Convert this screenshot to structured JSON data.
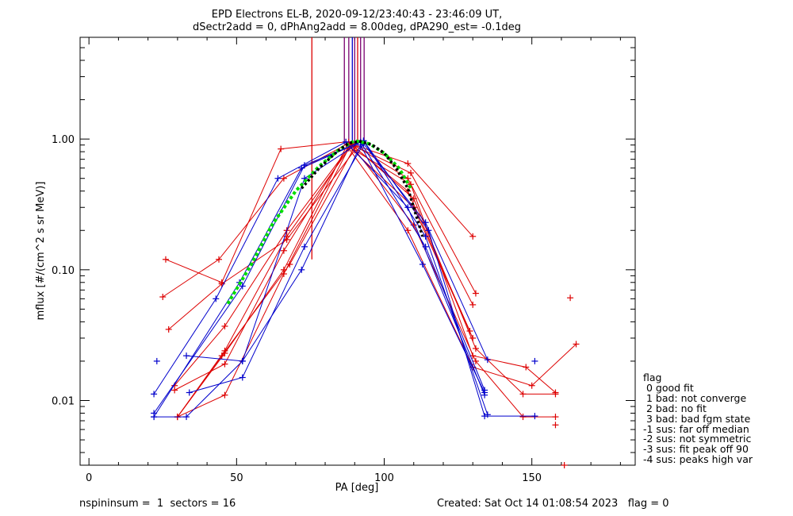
{
  "chart_data": {
    "type": "line",
    "title": "EPD Electrons EL-B, 2020-09-12/23:40:43 - 23:46:09 UT,",
    "subtitle": "dSectr2add = 0, dPhAng2add = 8.00deg, dPA290_est=  -0.1deg",
    "xlabel": "PA [deg]",
    "ylabel": "mflux [#/(cm^2 s sr MeV)]",
    "xlim": [
      -3,
      185
    ],
    "ylim": [
      0.0032,
      6.0
    ],
    "ylog": true,
    "xticks": [
      0,
      50,
      100,
      150
    ],
    "yticks": [
      0.01,
      0.1,
      1.0
    ],
    "ytick_labels": [
      "0.01",
      "0.10",
      "1.00"
    ],
    "colors": {
      "red": "#dd0000",
      "blue": "#0000cc",
      "green": "#00dd00",
      "black": "#000000",
      "purple": "#7a0070"
    },
    "series": [
      {
        "color": "red",
        "x": [
          26,
          45,
          65,
          87,
          108,
          130
        ],
        "y": [
          0.12,
          0.08,
          0.84,
          0.95,
          0.65,
          0.18
        ]
      },
      {
        "color": "red",
        "x": [
          25,
          44,
          66,
          88,
          109,
          131
        ],
        "y": [
          0.062,
          0.12,
          0.5,
          0.93,
          0.55,
          0.066
        ]
      },
      {
        "color": "red",
        "x": [
          29,
          46,
          67,
          89,
          108,
          130
        ],
        "y": [
          0.013,
          0.037,
          0.2,
          0.92,
          0.5,
          0.054
        ]
      },
      {
        "color": "red",
        "x": [
          30,
          46,
          67,
          89,
          108,
          129
        ],
        "y": [
          0.0075,
          0.024,
          0.18,
          0.9,
          0.4,
          0.034
        ]
      },
      {
        "color": "red",
        "x": [
          29,
          46,
          66,
          88,
          110,
          130
        ],
        "y": [
          0.012,
          0.019,
          0.14,
          0.88,
          0.3,
          0.03
        ]
      },
      {
        "color": "red",
        "x": [
          30,
          46,
          66,
          88,
          108,
          130,
          150,
          165
        ],
        "y": [
          0.0075,
          0.011,
          0.093,
          0.85,
          0.2,
          0.018,
          0.013,
          0.027
        ]
      },
      {
        "color": "red",
        "x": [
          27,
          45,
          67,
          90,
          109,
          130,
          148,
          158
        ],
        "y": [
          0.035,
          0.078,
          0.17,
          0.82,
          0.45,
          0.022,
          0.018,
          0.0115
        ]
      },
      {
        "color": "red",
        "x": [
          30,
          45,
          68,
          90,
          110,
          131,
          147,
          158
        ],
        "y": [
          0.0075,
          0.022,
          0.11,
          0.87,
          0.35,
          0.025,
          0.0112,
          0.0112
        ]
      },
      {
        "color": "red",
        "x": [
          30,
          46,
          66,
          88,
          110,
          131,
          147,
          158
        ],
        "y": [
          0.0075,
          0.023,
          0.1,
          0.95,
          0.22,
          0.02,
          0.0075,
          0.0075
        ]
      },
      {
        "color": "blue",
        "x": [
          22,
          43,
          64,
          87,
          108,
          134
        ],
        "y": [
          0.0112,
          0.06,
          0.5,
          0.95,
          0.3,
          0.011
        ]
      },
      {
        "color": "blue",
        "x": [
          22,
          51,
          72,
          93,
          115,
          134,
          151
        ],
        "y": [
          0.0075,
          0.08,
          0.6,
          0.97,
          0.2,
          0.0076,
          0.0076
        ]
      },
      {
        "color": "blue",
        "x": [
          22,
          52,
          73,
          93,
          114,
          135
        ],
        "y": [
          0.008,
          0.075,
          0.63,
          0.97,
          0.18,
          0.0078
        ]
      },
      {
        "color": "blue",
        "x": [
          22,
          33,
          52,
          73,
          92,
          114,
          134
        ],
        "y": [
          0.0075,
          0.0075,
          0.02,
          0.5,
          0.95,
          0.15,
          0.012
        ]
      },
      {
        "color": "blue",
        "x": [
          34,
          52,
          73,
          93,
          114,
          135
        ],
        "y": [
          0.0115,
          0.015,
          0.15,
          0.92,
          0.23,
          0.0205
        ]
      },
      {
        "color": "blue",
        "x": [
          33,
          52,
          72,
          92,
          113,
          134
        ],
        "y": [
          0.022,
          0.02,
          0.1,
          0.9,
          0.11,
          0.0115
        ]
      }
    ],
    "outlier_points": [
      {
        "color": "blue",
        "x": 23,
        "y": 0.02
      },
      {
        "color": "blue",
        "x": 151,
        "y": 0.02
      },
      {
        "color": "red",
        "x": 163,
        "y": 0.061
      },
      {
        "color": "red",
        "x": 158,
        "y": 0.0065
      },
      {
        "color": "red",
        "x": 161,
        "y": 0.0032
      }
    ],
    "fits": [
      {
        "color": "green",
        "style": "dotted",
        "x": [
          47,
          55,
          62,
          70,
          78,
          85,
          90,
          95,
          100,
          105,
          109
        ],
        "y": [
          0.055,
          0.11,
          0.22,
          0.4,
          0.62,
          0.84,
          0.97,
          0.92,
          0.78,
          0.6,
          0.42
        ]
      },
      {
        "color": "black",
        "style": "dotted",
        "x": [
          72,
          78,
          84,
          88,
          92,
          96,
          100,
          104,
          108,
          110,
          113
        ],
        "y": [
          0.42,
          0.6,
          0.8,
          0.93,
          0.96,
          0.9,
          0.78,
          0.6,
          0.42,
          0.3,
          0.18
        ]
      }
    ],
    "vertical_markers": [
      {
        "color": "red",
        "x": 75.5,
        "y_from": 0.12,
        "y_to": 6.0
      },
      {
        "color": "purple",
        "x": 86.5,
        "y_from": 0.9,
        "y_to": 6.0
      },
      {
        "color": "purple",
        "x": 88.0,
        "y_from": 0.9,
        "y_to": 6.0
      },
      {
        "color": "blue",
        "x": 89.2,
        "y_from": 0.9,
        "y_to": 6.0
      },
      {
        "color": "purple",
        "x": 90.0,
        "y_from": 0.9,
        "y_to": 6.0
      },
      {
        "color": "red",
        "x": 91.0,
        "y_from": 0.9,
        "y_to": 6.0
      },
      {
        "color": "purple",
        "x": 92.0,
        "y_from": 0.9,
        "y_to": 6.0
      },
      {
        "color": "purple",
        "x": 93.2,
        "y_from": 0.9,
        "y_to": 6.0
      }
    ],
    "legend_placement": "right-bottom",
    "grid": false
  },
  "legend": {
    "lines": [
      "flag",
      " 0 good fit",
      " 1 bad: not converge",
      " 2 bad: no fit",
      " 3 bad: bad fgm state",
      "-1 sus: far off median",
      "-2 sus: not symmetric",
      "-3 sus: fit peak off 90",
      "-4 sus: peaks high var"
    ]
  },
  "footer": {
    "left": "nspininsum =  1  sectors = 16",
    "right": "Created: Sat Oct 14 01:08:54 2023   flag = 0"
  }
}
